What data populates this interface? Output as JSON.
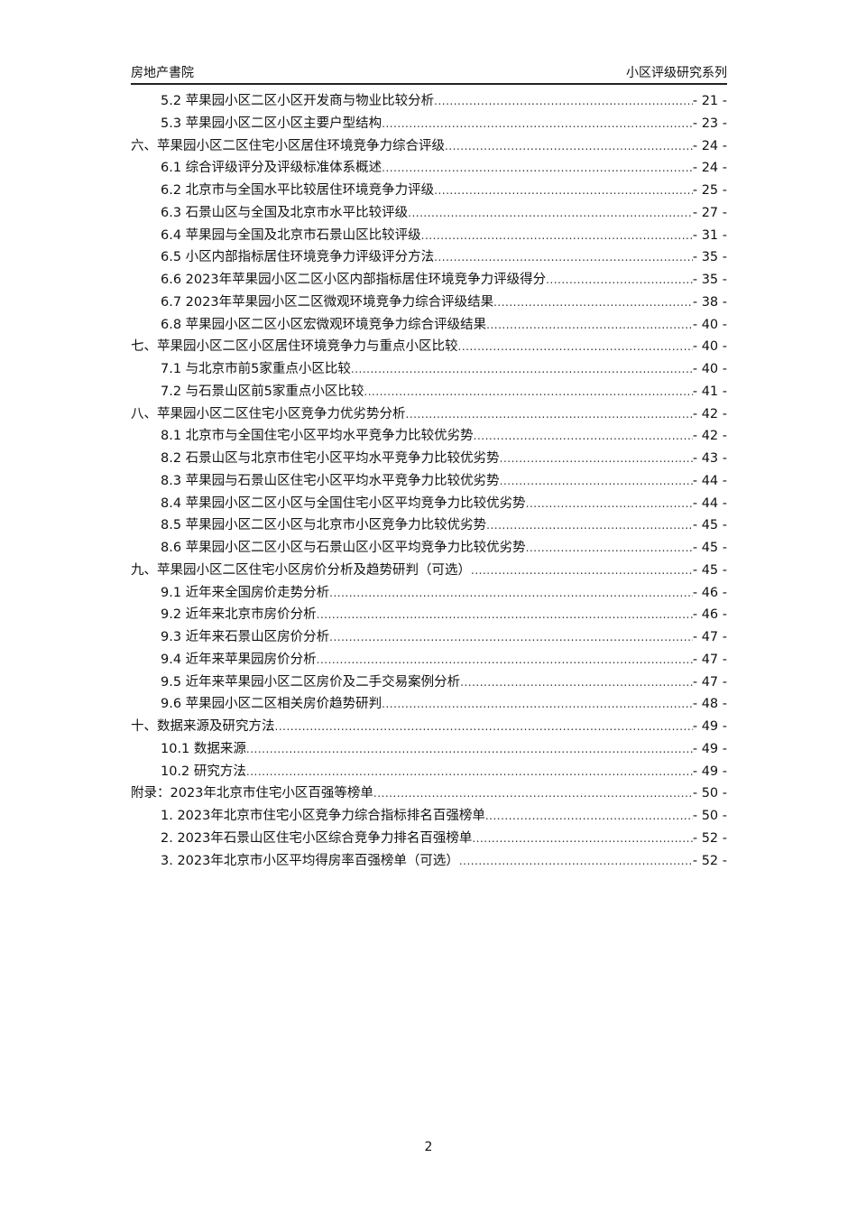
{
  "header": {
    "left": "房地产書院",
    "right": "小区评级研究系列"
  },
  "toc": [
    {
      "level": 2,
      "title": "5.2 苹果园小区二区小区开发商与物业比较分析",
      "page": "- 21 -"
    },
    {
      "level": 2,
      "title": "5.3 苹果园小区二区小区主要户型结构",
      "page": "- 23 -"
    },
    {
      "level": 1,
      "title": "六、苹果园小区二区住宅小区居住环境竞争力综合评级",
      "page": "- 24 -"
    },
    {
      "level": 2,
      "title": "6.1 综合评级评分及评级标准体系概述",
      "page": "- 24 -"
    },
    {
      "level": 2,
      "title": "6.2 北京市与全国水平比较居住环境竞争力评级",
      "page": "- 25 -"
    },
    {
      "level": 2,
      "title": "6.3 石景山区与全国及北京市水平比较评级",
      "page": "- 27 -"
    },
    {
      "level": 2,
      "title": "6.4 苹果园与全国及北京市石景山区比较评级",
      "page": "- 31 -"
    },
    {
      "level": 2,
      "title": "6.5 小区内部指标居住环境竞争力评级评分方法",
      "page": "- 35 -"
    },
    {
      "level": 2,
      "title": "6.6 2023年苹果园小区二区小区内部指标居住环境竞争力评级得分",
      "page": "- 35 -"
    },
    {
      "level": 2,
      "title": "6.7 2023年苹果园小区二区微观环境竞争力综合评级结果",
      "page": "- 38 -"
    },
    {
      "level": 2,
      "title": "6.8 苹果园小区二区小区宏微观环境竞争力综合评级结果",
      "page": "- 40 -"
    },
    {
      "level": 1,
      "title": "七、苹果园小区二区小区居住环境竞争力与重点小区比较",
      "page": "- 40 -"
    },
    {
      "level": 2,
      "title": "7.1 与北京市前5家重点小区比较",
      "page": "- 40 -"
    },
    {
      "level": 2,
      "title": "7.2 与石景山区前5家重点小区比较",
      "page": "- 41 -"
    },
    {
      "level": 1,
      "title": "八、苹果园小区二区住宅小区竞争力优劣势分析",
      "page": "- 42 -"
    },
    {
      "level": 2,
      "title": "8.1 北京市与全国住宅小区平均水平竞争力比较优劣势",
      "page": "- 42 -"
    },
    {
      "level": 2,
      "title": "8.2 石景山区与北京市住宅小区平均水平竞争力比较优劣势",
      "page": "- 43 -"
    },
    {
      "level": 2,
      "title": "8.3 苹果园与石景山区住宅小区平均水平竞争力比较优劣势",
      "page": "- 44 -"
    },
    {
      "level": 2,
      "title": "8.4 苹果园小区二区小区与全国住宅小区平均竞争力比较优劣势",
      "page": "- 44 -"
    },
    {
      "level": 2,
      "title": "8.5 苹果园小区二区小区与北京市小区竞争力比较优劣势",
      "page": "- 45 -"
    },
    {
      "level": 2,
      "title": "8.6 苹果园小区二区小区与石景山区小区平均竞争力比较优劣势",
      "page": "- 45 -"
    },
    {
      "level": 1,
      "title": "九、苹果园小区二区住宅小区房价分析及趋势研判（可选）",
      "page": "- 45 -"
    },
    {
      "level": 2,
      "title": "9.1 近年来全国房价走势分析",
      "page": "- 46 -"
    },
    {
      "level": 2,
      "title": "9.2 近年来北京市房价分析",
      "page": "- 46 -"
    },
    {
      "level": 2,
      "title": "9.3 近年来石景山区房价分析",
      "page": "- 47 -"
    },
    {
      "level": 2,
      "title": "9.4 近年来苹果园房价分析",
      "page": "- 47 -"
    },
    {
      "level": 2,
      "title": "9.5 近年来苹果园小区二区房价及二手交易案例分析",
      "page": "- 47 -"
    },
    {
      "level": 2,
      "title": "9.6 苹果园小区二区相关房价趋势研判",
      "page": "- 48 -"
    },
    {
      "level": 1,
      "title": "十、数据来源及研究方法",
      "page": "- 49 -"
    },
    {
      "level": 2,
      "title": "10.1 数据来源",
      "page": "- 49 -"
    },
    {
      "level": 2,
      "title": "10.2 研究方法",
      "page": "- 49 -"
    },
    {
      "level": 1,
      "title": "附录：2023年北京市住宅小区百强等榜单",
      "page": "- 50 -"
    },
    {
      "level": 2,
      "title": "1. 2023年北京市住宅小区竞争力综合指标排名百强榜单",
      "page": "- 50 -"
    },
    {
      "level": 2,
      "title": "2. 2023年石景山区住宅小区综合竞争力排名百强榜单",
      "page": "- 52 -"
    },
    {
      "level": 2,
      "title": "3. 2023年北京市小区平均得房率百强榜单（可选）",
      "page": "- 52 -"
    }
  ],
  "footer": {
    "page_number": "2"
  }
}
